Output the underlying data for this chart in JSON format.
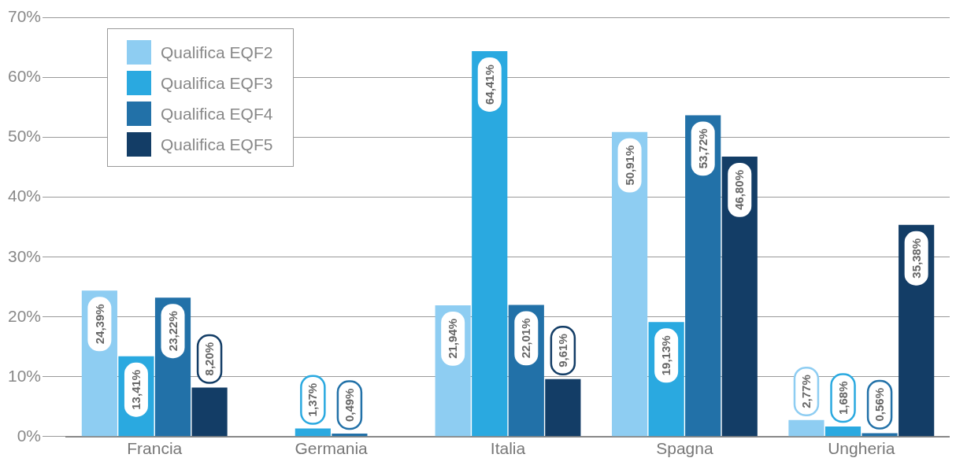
{
  "chart_data": {
    "type": "bar",
    "categories": [
      "Francia",
      "Germania",
      "Italia",
      "Spagna",
      "Ungheria"
    ],
    "ylim": [
      0,
      70
    ],
    "yticks": [
      {
        "value": 0,
        "label": "0%"
      },
      {
        "value": 10,
        "label": "10%"
      },
      {
        "value": 20,
        "label": "20%"
      },
      {
        "value": 30,
        "label": "30%"
      },
      {
        "value": 40,
        "label": "40%"
      },
      {
        "value": 50,
        "label": "50%"
      },
      {
        "value": 60,
        "label": "60%"
      },
      {
        "value": 70,
        "label": "70%"
      }
    ],
    "grid": "y",
    "legend": "top left",
    "series": [
      {
        "name": "Qualifica EQF2",
        "color": "#8ecdf2",
        "values": [
          24.39,
          null,
          21.94,
          50.91,
          2.77
        ],
        "value_labels": [
          "24,39%",
          null,
          "21,94%",
          "50,91%",
          "2,77%"
        ]
      },
      {
        "name": "Qualifica EQF3",
        "color": "#2aa9e0",
        "values": [
          13.41,
          1.37,
          64.41,
          19.13,
          1.68
        ],
        "value_labels": [
          "13,41%",
          "1,37%",
          "64,41%",
          "19,13%",
          "1,68%"
        ]
      },
      {
        "name": "Qualifica EQF4",
        "color": "#2271a8",
        "values": [
          23.22,
          0.49,
          22.01,
          53.72,
          0.56
        ],
        "value_labels": [
          "23,22%",
          "0,49%",
          "22,01%",
          "53,72%",
          "0,56%"
        ]
      },
      {
        "name": "Qualifica EQF5",
        "color": "#133d66",
        "values": [
          8.2,
          null,
          9.61,
          46.8,
          35.38
        ],
        "value_labels": [
          "8,20%",
          null,
          "9,61%",
          "46,80%",
          "35,38%"
        ]
      }
    ]
  }
}
